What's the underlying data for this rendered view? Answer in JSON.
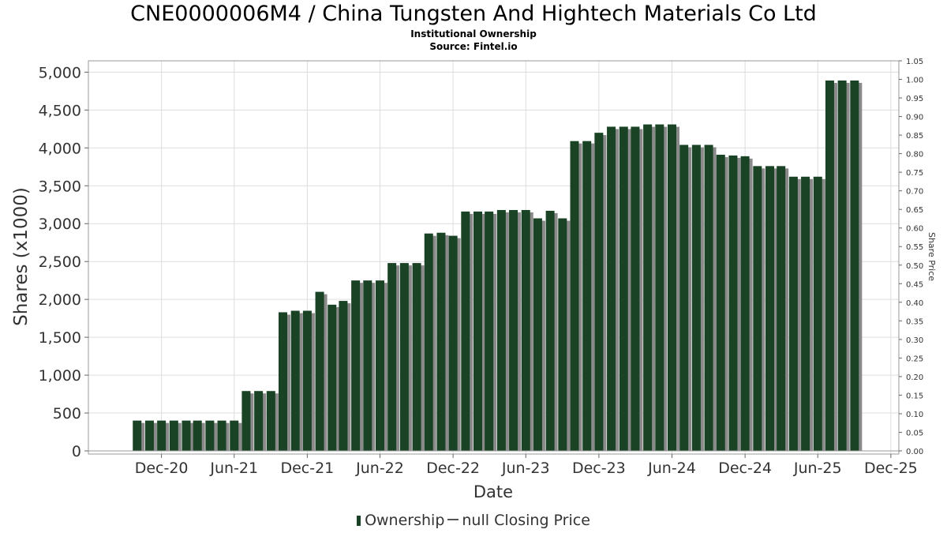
{
  "header": {
    "title": "CNE0000006M4 / China Tungsten And Hightech Materials Co Ltd",
    "subtitle": "Institutional Ownership",
    "source": "Source: Fintel.io"
  },
  "legend": {
    "series1": "Ownership",
    "series2": "null Closing Price"
  },
  "colors": {
    "bar": "#1a4225",
    "shadow": "#8a8a8a",
    "grid": "#dddddd"
  },
  "chart_data": {
    "type": "bar",
    "xlabel": "Date",
    "ylabel": "Shares (x1000)",
    "y2label": "Share Price",
    "ylim": [
      0,
      5150
    ],
    "y2lim": [
      0,
      1.05
    ],
    "xlim": [
      "2020-06-01",
      "2025-12-21"
    ],
    "x_ticks": [
      "2020-12-01",
      "2021-06-01",
      "2021-12-01",
      "2022-06-01",
      "2022-12-01",
      "2023-06-01",
      "2023-12-01",
      "2024-06-01",
      "2024-12-01",
      "2025-06-01",
      "2025-12-01"
    ],
    "x_tick_labels": [
      "Dec-20",
      "Jun-21",
      "Dec-21",
      "Jun-22",
      "Dec-22",
      "Jun-23",
      "Dec-23",
      "Jun-24",
      "Dec-24",
      "Jun-25",
      "Dec-25"
    ],
    "y_ticks": [
      0,
      500,
      1000,
      1500,
      2000,
      2500,
      3000,
      3500,
      4000,
      4500,
      5000
    ],
    "y_tick_labels": [
      "0",
      "500",
      "1,000",
      "1,500",
      "2,000",
      "2,500",
      "3,000",
      "3,500",
      "4,000",
      "4,500",
      "5,000"
    ],
    "y2_ticks": [
      0,
      0.05,
      0.1,
      0.15,
      0.2,
      0.25,
      0.3,
      0.35,
      0.4,
      0.45,
      0.5,
      0.55,
      0.6,
      0.65,
      0.7,
      0.75,
      0.8,
      0.85,
      0.9,
      0.95,
      1.0,
      1.05
    ],
    "y2_tick_labels": [
      "0.00",
      "0.05",
      "0.10",
      "0.15",
      "0.20",
      "0.25",
      "0.30",
      "0.35",
      "0.40",
      "0.45",
      "0.50",
      "0.55",
      "0.60",
      "0.65",
      "0.70",
      "0.75",
      "0.80",
      "0.85",
      "0.90",
      "0.95",
      "1.00",
      "1.05"
    ],
    "grid": true,
    "legend_position": "bottom",
    "series": [
      {
        "name": "Ownership",
        "x": [
          "2020-10-01",
          "2020-11-01",
          "2020-12-01",
          "2021-01-01",
          "2021-02-01",
          "2021-03-01",
          "2021-04-01",
          "2021-05-01",
          "2021-06-01",
          "2021-07-01",
          "2021-08-01",
          "2021-09-01",
          "2021-10-01",
          "2021-11-01",
          "2021-12-01",
          "2022-01-01",
          "2022-02-01",
          "2022-03-01",
          "2022-04-01",
          "2022-05-01",
          "2022-06-01",
          "2022-07-01",
          "2022-08-01",
          "2022-09-01",
          "2022-10-01",
          "2022-11-01",
          "2022-12-01",
          "2023-01-01",
          "2023-02-01",
          "2023-03-01",
          "2023-04-01",
          "2023-05-01",
          "2023-06-01",
          "2023-07-01",
          "2023-08-01",
          "2023-09-01",
          "2023-10-01",
          "2023-11-01",
          "2023-12-01",
          "2024-01-01",
          "2024-02-01",
          "2024-03-01",
          "2024-04-01",
          "2024-05-01",
          "2024-06-01",
          "2024-07-01",
          "2024-08-01",
          "2024-09-01",
          "2024-10-01",
          "2024-11-01",
          "2024-12-01",
          "2025-01-01",
          "2025-02-01",
          "2025-03-01",
          "2025-04-01",
          "2025-05-01",
          "2025-06-01",
          "2025-07-01",
          "2025-08-01",
          "2025-09-01"
        ],
        "values": [
          400,
          400,
          400,
          400,
          400,
          400,
          400,
          400,
          400,
          790,
          790,
          790,
          1830,
          1850,
          1850,
          2100,
          1930,
          1980,
          2250,
          2250,
          2250,
          2480,
          2480,
          2480,
          2870,
          2880,
          2840,
          3160,
          3160,
          3160,
          3180,
          3180,
          3180,
          3070,
          3170,
          3070,
          4090,
          4090,
          4200,
          4280,
          4280,
          4280,
          4310,
          4310,
          4310,
          4040,
          4040,
          4040,
          3910,
          3900,
          3890,
          3760,
          3760,
          3760,
          3620,
          3620,
          3620,
          4890,
          4890,
          4890
        ]
      },
      {
        "name": "null Closing Price",
        "values": []
      }
    ]
  }
}
